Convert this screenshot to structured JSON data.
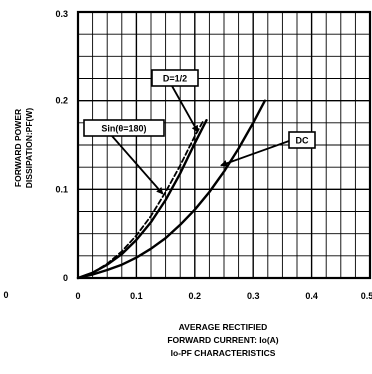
{
  "chart_data": {
    "type": "line",
    "x_axis": {
      "range": [
        0,
        0.5
      ],
      "ticks": [
        0,
        0.1,
        0.2,
        0.3,
        0.4,
        0.5
      ],
      "tick_labels": [
        "0",
        "0.1",
        "0.2",
        "0.3",
        "0.4",
        "0.5"
      ],
      "grid_step": 0.025
    },
    "y_axis": {
      "range": [
        0,
        0.3
      ],
      "ticks": [
        0,
        0.1,
        0.2,
        0.3
      ],
      "tick_labels": [
        "0",
        "0.1",
        "0.2",
        "0.3"
      ],
      "grid_step": 0.025
    },
    "grid": true,
    "xlabel": [
      "AVERAGE RECTIFIED",
      "FORWARD CURRENT: Io(A)"
    ],
    "ylabel": [
      "FORWARD POWER",
      "DISSIPATION:PF(W)"
    ],
    "caption": "Io-PF CHARACTERISTICS",
    "left_edge_fragment": "0",
    "series": [
      {
        "name": "Sin(θ=180)",
        "style": "dashed",
        "x": [
          0,
          0.025,
          0.05,
          0.075,
          0.1,
          0.125,
          0.15,
          0.175,
          0.2,
          0.215
        ],
        "y": [
          0,
          0.006,
          0.016,
          0.03,
          0.048,
          0.07,
          0.097,
          0.127,
          0.16,
          0.178
        ]
      },
      {
        "name": "D=1/2",
        "style": "solid",
        "x": [
          0,
          0.025,
          0.05,
          0.075,
          0.1,
          0.125,
          0.15,
          0.175,
          0.2,
          0.22
        ],
        "y": [
          0,
          0.006,
          0.015,
          0.027,
          0.043,
          0.063,
          0.088,
          0.118,
          0.152,
          0.178
        ]
      },
      {
        "name": "DC",
        "style": "solid",
        "x": [
          0,
          0.025,
          0.05,
          0.075,
          0.1,
          0.125,
          0.15,
          0.175,
          0.2,
          0.225,
          0.25,
          0.275,
          0.3,
          0.32
        ],
        "y": [
          0,
          0.004,
          0.009,
          0.015,
          0.023,
          0.033,
          0.045,
          0.06,
          0.077,
          0.097,
          0.12,
          0.146,
          0.175,
          0.2
        ]
      }
    ],
    "annotations": [
      {
        "text": "D=1/2",
        "series": "D=1/2",
        "point": [
          0.205,
          0.165
        ]
      },
      {
        "text": "Sin(θ=180)",
        "series": "Sin(θ=180)",
        "point": [
          0.145,
          0.095
        ]
      },
      {
        "text": "DC",
        "series": "DC",
        "point": [
          0.245,
          0.127
        ]
      }
    ]
  }
}
